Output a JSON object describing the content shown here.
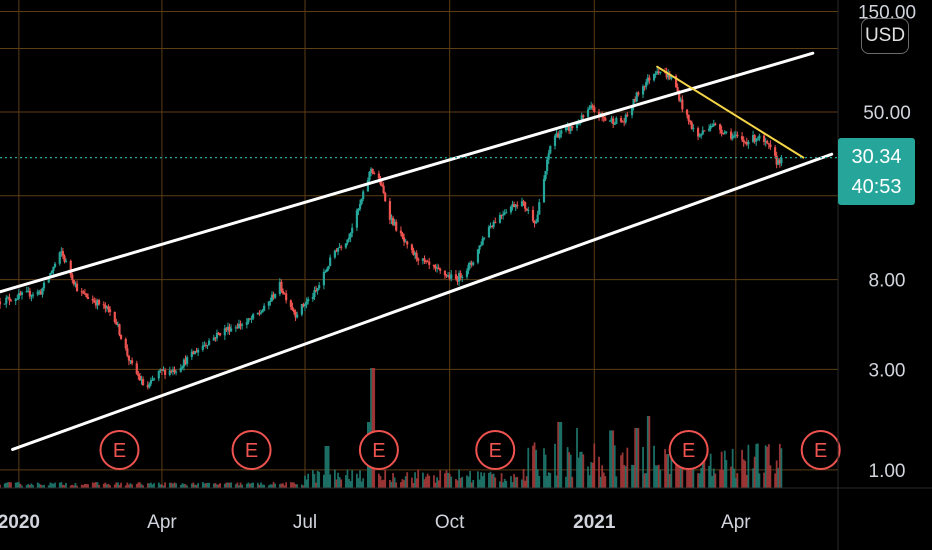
{
  "header": {
    "currency": "USD"
  },
  "colors": {
    "background": "#000000",
    "grid": "#5c3d16",
    "up": "#26a69a",
    "down": "#ef5350",
    "channel": "#ffffff",
    "trendline": "#f5d547",
    "price_line": "#26a69a",
    "earnings": "#ef5350"
  },
  "price_badge": {
    "price": "30.34",
    "countdown": "40:53"
  },
  "earnings_marker": {
    "label": "E",
    "dates": [
      "2020-03-05",
      "2020-05-28",
      "2020-08-17",
      "2020-10-30",
      "2021-03-02",
      "2021-05-25"
    ]
  },
  "chart_data": {
    "type": "candlestick",
    "scale": "log",
    "grid": true,
    "x_range": [
      "2019-12-20",
      "2021-06-05"
    ],
    "y_range": [
      0.82,
      170
    ],
    "y_ticks": [
      {
        "value": 150,
        "label": "150.00"
      },
      {
        "value": 50,
        "label": "50.00"
      },
      {
        "value": 8,
        "label": "8.00"
      },
      {
        "value": 3,
        "label": "3.00"
      },
      {
        "value": 1,
        "label": "1.00"
      }
    ],
    "x_ticks": [
      {
        "date": "2020-01-01",
        "label": "2020",
        "bold": true
      },
      {
        "date": "2020-04-01",
        "label": "Apr",
        "bold": false
      },
      {
        "date": "2020-07-01",
        "label": "Jul",
        "bold": false
      },
      {
        "date": "2020-10-01",
        "label": "Oct",
        "bold": false
      },
      {
        "date": "2021-01-01",
        "label": "2021",
        "bold": true
      },
      {
        "date": "2021-04-01",
        "label": "Apr",
        "bold": false
      }
    ],
    "extra_gridlines": [
      100,
      20
    ],
    "last_price": 30.34,
    "price_anchors": [
      [
        "2019-12-20",
        6.3
      ],
      [
        "2020-01-05",
        6.8
      ],
      [
        "2020-01-15",
        7.0
      ],
      [
        "2020-01-28",
        10.8
      ],
      [
        "2020-02-08",
        7.0
      ],
      [
        "2020-02-20",
        6.2
      ],
      [
        "2020-03-01",
        5.5
      ],
      [
        "2020-03-12",
        3.2
      ],
      [
        "2020-03-22",
        2.4
      ],
      [
        "2020-03-30",
        2.9
      ],
      [
        "2020-04-10",
        3.0
      ],
      [
        "2020-04-25",
        3.8
      ],
      [
        "2020-05-10",
        4.6
      ],
      [
        "2020-05-25",
        5.0
      ],
      [
        "2020-06-05",
        5.8
      ],
      [
        "2020-06-15",
        7.5
      ],
      [
        "2020-06-25",
        5.5
      ],
      [
        "2020-07-08",
        7.0
      ],
      [
        "2020-07-20",
        11.0
      ],
      [
        "2020-07-28",
        12.5
      ],
      [
        "2020-08-05",
        18.0
      ],
      [
        "2020-08-12",
        27.0
      ],
      [
        "2020-08-18",
        23.0
      ],
      [
        "2020-08-24",
        16.0
      ],
      [
        "2020-09-05",
        11.0
      ],
      [
        "2020-09-20",
        9.0
      ],
      [
        "2020-10-05",
        8.0
      ],
      [
        "2020-10-15",
        9.5
      ],
      [
        "2020-10-25",
        14.0
      ],
      [
        "2020-11-05",
        17.0
      ],
      [
        "2020-11-15",
        19.0
      ],
      [
        "2020-11-25",
        15.0
      ],
      [
        "2020-12-05",
        38.0
      ],
      [
        "2020-12-20",
        43.0
      ],
      [
        "2020-12-30",
        52.0
      ],
      [
        "2021-01-08",
        46.0
      ],
      [
        "2021-01-20",
        45.0
      ],
      [
        "2021-01-30",
        64.0
      ],
      [
        "2021-02-10",
        80.0
      ],
      [
        "2021-02-20",
        72.0
      ],
      [
        "2021-02-28",
        48.0
      ],
      [
        "2021-03-08",
        38.0
      ],
      [
        "2021-03-16",
        44.0
      ],
      [
        "2021-03-26",
        40.0
      ],
      [
        "2021-04-06",
        36.0
      ],
      [
        "2021-04-15",
        38.0
      ],
      [
        "2021-04-22",
        34.0
      ],
      [
        "2021-04-27",
        29.0
      ],
      [
        "2021-05-01",
        30.34
      ]
    ],
    "volume_spikes": [
      [
        "2020-08-13",
        1.0
      ],
      [
        "2020-08-10",
        0.55
      ],
      [
        "2020-12-10",
        0.55
      ],
      [
        "2020-12-20",
        0.5
      ],
      [
        "2021-01-12",
        0.48
      ],
      [
        "2021-02-05",
        0.6
      ],
      [
        "2021-01-28",
        0.5
      ],
      [
        "2020-07-15",
        0.35
      ]
    ],
    "channel_upper": {
      "from": [
        "2019-12-20",
        7.0
      ],
      "to": [
        "2021-05-20",
        95.0
      ]
    },
    "channel_lower": {
      "from": [
        "2019-12-28",
        1.25
      ],
      "to": [
        "2021-06-01",
        31.5
      ]
    },
    "trendline": {
      "from": [
        "2021-02-10",
        82.0
      ],
      "to": [
        "2021-05-14",
        30.34
      ]
    }
  }
}
